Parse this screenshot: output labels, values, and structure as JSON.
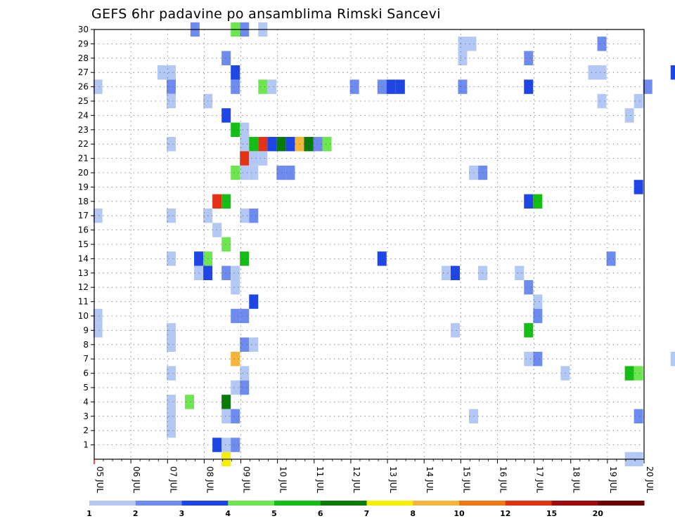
{
  "chart_data": {
    "type": "heatmap",
    "title": "GEFS 6hr padavine po ansamblima Rimski Sancevi",
    "xlabel": "",
    "ylabel": "",
    "x_tick_labels": [
      "05 JUL",
      "06 JUL",
      "07 JUL",
      "08 JUL",
      "09 JUL",
      "10 JUL",
      "11 JUL",
      "12 JUL",
      "13 JUL",
      "14 JUL",
      "15 JUL",
      "16 JUL",
      "17 JUL",
      "18 JUL",
      "19 JUL",
      "20 JUL"
    ],
    "x_range_days": [
      0,
      15
    ],
    "y_tick_labels": [
      "1",
      "2",
      "3",
      "4",
      "5",
      "6",
      "7",
      "8",
      "9",
      "10",
      "11",
      "12",
      "13",
      "14",
      "15",
      "16",
      "17",
      "18",
      "19",
      "20",
      "21",
      "22",
      "23",
      "24",
      "25",
      "26",
      "27",
      "28",
      "29",
      "30"
    ],
    "y_range_members": [
      0,
      30
    ],
    "grid": true,
    "value_unit_note": "",
    "colorbar": {
      "labels": [
        "1",
        "2",
        "3",
        "4",
        "5",
        "6",
        "7",
        "8",
        "10",
        "12",
        "15",
        "20"
      ],
      "colors": [
        "#b4c8f5",
        "#6e8cf0",
        "#1e46e6",
        "#6ee650",
        "#14be14",
        "#087a08",
        "#f5f000",
        "#f5b43c",
        "#f07814",
        "#e63214",
        "#a00a0a",
        "#6e0000"
      ]
    },
    "cells": [
      [
        30,
        7.75,
        2
      ],
      [
        30,
        8.85,
        4
      ],
      [
        30,
        9.1,
        2
      ],
      [
        30,
        9.6,
        1
      ],
      [
        29,
        15.05,
        1
      ],
      [
        29,
        15.3,
        1
      ],
      [
        29,
        18.85,
        2
      ],
      [
        28,
        8.6,
        2
      ],
      [
        28,
        15.05,
        1
      ],
      [
        28,
        16.85,
        2
      ],
      [
        27,
        6.85,
        1
      ],
      [
        27,
        7.1,
        1
      ],
      [
        27,
        8.85,
        3
      ],
      [
        27,
        18.6,
        1
      ],
      [
        27,
        18.85,
        1
      ],
      [
        27,
        20.85,
        3
      ],
      [
        26,
        5.1,
        1
      ],
      [
        26,
        7.1,
        2
      ],
      [
        26,
        8.85,
        2
      ],
      [
        26,
        9.6,
        4
      ],
      [
        26,
        9.85,
        1
      ],
      [
        26,
        12.1,
        2
      ],
      [
        26,
        12.85,
        2
      ],
      [
        26,
        13.1,
        3
      ],
      [
        26,
        13.35,
        3
      ],
      [
        26,
        15.05,
        2
      ],
      [
        26,
        16.85,
        3
      ],
      [
        26,
        20.1,
        2
      ],
      [
        25,
        7.1,
        1
      ],
      [
        25,
        8.1,
        1
      ],
      [
        25,
        18.85,
        1
      ],
      [
        25,
        19.85,
        1
      ],
      [
        24,
        8.6,
        3
      ],
      [
        24,
        19.6,
        1
      ],
      [
        23,
        8.85,
        5
      ],
      [
        23,
        9.1,
        1
      ],
      [
        22,
        7.1,
        1
      ],
      [
        22,
        9.1,
        1
      ],
      [
        22,
        9.35,
        5
      ],
      [
        22,
        9.6,
        10
      ],
      [
        22,
        9.85,
        3
      ],
      [
        22,
        10.1,
        6
      ],
      [
        22,
        10.35,
        3
      ],
      [
        22,
        10.6,
        8
      ],
      [
        22,
        10.85,
        6
      ],
      [
        22,
        11.1,
        2
      ],
      [
        22,
        11.35,
        4
      ],
      [
        21,
        9.1,
        10
      ],
      [
        21,
        9.35,
        1
      ],
      [
        21,
        9.6,
        1
      ],
      [
        20,
        8.85,
        4
      ],
      [
        20,
        9.1,
        1
      ],
      [
        20,
        9.35,
        1
      ],
      [
        20,
        10.1,
        2
      ],
      [
        20,
        10.35,
        2
      ],
      [
        20,
        15.35,
        1
      ],
      [
        20,
        15.6,
        2
      ],
      [
        19,
        19.85,
        3
      ],
      [
        18,
        8.35,
        10
      ],
      [
        18,
        8.6,
        5
      ],
      [
        18,
        16.85,
        3
      ],
      [
        18,
        17.1,
        5
      ],
      [
        17,
        5.1,
        1
      ],
      [
        17,
        7.1,
        1
      ],
      [
        17,
        8.1,
        1
      ],
      [
        17,
        9.1,
        1
      ],
      [
        17,
        9.35,
        2
      ],
      [
        16,
        8.35,
        1
      ],
      [
        15,
        8.6,
        4
      ],
      [
        14,
        7.1,
        1
      ],
      [
        14,
        7.85,
        3
      ],
      [
        14,
        8.1,
        4
      ],
      [
        14,
        9.1,
        5
      ],
      [
        14,
        12.85,
        3
      ],
      [
        14,
        19.1,
        2
      ],
      [
        13,
        7.85,
        1
      ],
      [
        13,
        8.1,
        3
      ],
      [
        13,
        8.6,
        2
      ],
      [
        13,
        8.85,
        1
      ],
      [
        13,
        14.6,
        1
      ],
      [
        13,
        14.85,
        3
      ],
      [
        13,
        15.6,
        1
      ],
      [
        13,
        16.6,
        1
      ],
      [
        12,
        8.85,
        1
      ],
      [
        12,
        16.85,
        2
      ],
      [
        11,
        9.35,
        3
      ],
      [
        11,
        17.1,
        1
      ],
      [
        10,
        5.1,
        1
      ],
      [
        10,
        8.85,
        2
      ],
      [
        10,
        9.1,
        2
      ],
      [
        10,
        17.1,
        2
      ],
      [
        9,
        5.1,
        1
      ],
      [
        9,
        7.1,
        1
      ],
      [
        9,
        14.85,
        1
      ],
      [
        9,
        16.85,
        5
      ],
      [
        8,
        7.1,
        1
      ],
      [
        8,
        9.1,
        2
      ],
      [
        8,
        9.35,
        1
      ],
      [
        7,
        8.85,
        8
      ],
      [
        7,
        16.85,
        1
      ],
      [
        7,
        17.1,
        2
      ],
      [
        7,
        20.85,
        1
      ],
      [
        6,
        7.1,
        1
      ],
      [
        6,
        9.1,
        1
      ],
      [
        6,
        17.85,
        1
      ],
      [
        6,
        19.6,
        5
      ],
      [
        6,
        19.85,
        4
      ],
      [
        5,
        8.85,
        1
      ],
      [
        5,
        9.1,
        2
      ],
      [
        4,
        7.1,
        1
      ],
      [
        4,
        7.6,
        4
      ],
      [
        4,
        8.6,
        6
      ],
      [
        3,
        7.1,
        1
      ],
      [
        3,
        8.6,
        1
      ],
      [
        3,
        8.85,
        2
      ],
      [
        3,
        15.35,
        1
      ],
      [
        3,
        19.85,
        2
      ],
      [
        2,
        7.1,
        1
      ],
      [
        1,
        8.35,
        3
      ],
      [
        1,
        8.6,
        1
      ],
      [
        1,
        8.85,
        2
      ],
      [
        0,
        8.6,
        7
      ],
      [
        0,
        19.6,
        1
      ],
      [
        0,
        19.85,
        1
      ]
    ]
  }
}
